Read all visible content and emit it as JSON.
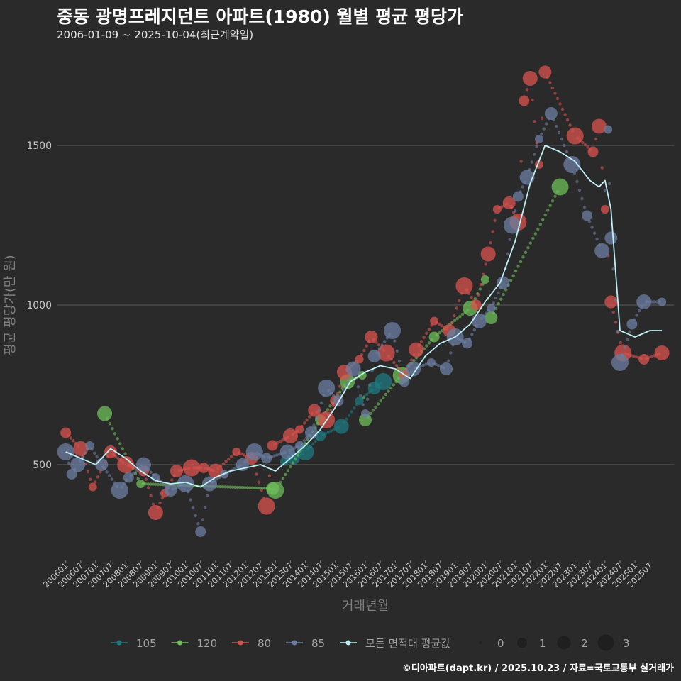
{
  "header": {
    "title": "중동 광명프레지던트 아파트(1980) 월별 평균 평당가",
    "subtitle": "2006-01-09 ~ 2025-10-04(최근계약일)"
  },
  "caption": "©디아파트(dapt.kr) / 2025.10.23 / 자료=국토교통부 실거래가",
  "colors": {
    "background": "#2b2a2b",
    "grid": "#5c5c5c",
    "s105": "#1f7a80",
    "s120": "#6fbf5a",
    "s80": "#d9534f",
    "s85": "#6c7fa3",
    "avg": "#bff0f5"
  },
  "chart_data": {
    "type": "scatter",
    "xlabel": "거래년월",
    "ylabel": "평균 평당가(만 원)",
    "ylim": [
      200,
      1800
    ],
    "yticks": [
      500,
      1000,
      1500
    ],
    "x_tick_labels": [
      "200601",
      "200607",
      "200701",
      "200707",
      "200801",
      "200807",
      "200901",
      "200907",
      "201001",
      "201007",
      "201101",
      "201107",
      "201201",
      "201207",
      "201301",
      "201307",
      "201401",
      "201407",
      "201501",
      "201507",
      "201601",
      "201607",
      "201701",
      "201707",
      "201801",
      "201807",
      "201901",
      "201907",
      "202001",
      "202007",
      "202101",
      "202107",
      "202201",
      "202207",
      "202301",
      "202307",
      "202401",
      "202407",
      "202501",
      "202507"
    ],
    "legend": {
      "series_labels": [
        "105",
        "120",
        "80",
        "85",
        "모든 면적대 평균값"
      ],
      "size_labels": [
        "0",
        "1",
        "2",
        "3"
      ]
    },
    "series": [
      {
        "name": "105",
        "points": [
          [
            2013.3,
            510
          ],
          [
            2013.6,
            520
          ],
          [
            2014.0,
            540
          ],
          [
            2014.5,
            590
          ],
          [
            2015.2,
            620
          ],
          [
            2015.8,
            700
          ],
          [
            2016.3,
            740
          ],
          [
            2016.6,
            760
          ]
        ]
      },
      {
        "name": "120",
        "points": [
          [
            2007.3,
            660
          ],
          [
            2008.5,
            440
          ],
          [
            2012.9,
            425
          ],
          [
            2013.0,
            420
          ],
          [
            2014.5,
            640
          ],
          [
            2015.4,
            760
          ],
          [
            2015.9,
            780
          ],
          [
            2016.0,
            640
          ],
          [
            2017.2,
            780
          ],
          [
            2018.3,
            900
          ],
          [
            2019.5,
            990
          ],
          [
            2020.0,
            1080
          ],
          [
            2020.2,
            960
          ],
          [
            2022.5,
            1370
          ]
        ]
      },
      {
        "name": "80",
        "points": [
          [
            2006.0,
            600
          ],
          [
            2006.5,
            550
          ],
          [
            2006.9,
            430
          ],
          [
            2007.5,
            540
          ],
          [
            2008.0,
            500
          ],
          [
            2008.6,
            480
          ],
          [
            2009.0,
            350
          ],
          [
            2009.3,
            410
          ],
          [
            2009.7,
            480
          ],
          [
            2010.2,
            490
          ],
          [
            2010.6,
            490
          ],
          [
            2011.0,
            480
          ],
          [
            2011.7,
            540
          ],
          [
            2012.2,
            520
          ],
          [
            2012.7,
            370
          ],
          [
            2012.9,
            560
          ],
          [
            2013.5,
            590
          ],
          [
            2013.8,
            610
          ],
          [
            2014.3,
            670
          ],
          [
            2014.7,
            640
          ],
          [
            2015.0,
            700
          ],
          [
            2015.3,
            790
          ],
          [
            2015.8,
            830
          ],
          [
            2016.2,
            900
          ],
          [
            2016.7,
            850
          ],
          [
            2017.3,
            780
          ],
          [
            2017.7,
            860
          ],
          [
            2018.3,
            950
          ],
          [
            2018.8,
            920
          ],
          [
            2019.3,
            1060
          ],
          [
            2019.7,
            1000
          ],
          [
            2020.1,
            1160
          ],
          [
            2020.4,
            1300
          ],
          [
            2020.8,
            1320
          ],
          [
            2021.1,
            1260
          ],
          [
            2021.3,
            1640
          ],
          [
            2021.5,
            1710
          ],
          [
            2021.8,
            1440
          ],
          [
            2022.0,
            1730
          ],
          [
            2023.0,
            1530
          ],
          [
            2023.6,
            1480
          ],
          [
            2023.8,
            1560
          ],
          [
            2024.0,
            1300
          ],
          [
            2024.2,
            1010
          ],
          [
            2024.6,
            850
          ],
          [
            2025.3,
            830
          ],
          [
            2025.9,
            850
          ]
        ]
      },
      {
        "name": "85",
        "points": [
          [
            2006.0,
            540
          ],
          [
            2006.2,
            470
          ],
          [
            2006.4,
            500
          ],
          [
            2006.8,
            560
          ],
          [
            2007.2,
            500
          ],
          [
            2007.8,
            420
          ],
          [
            2008.1,
            460
          ],
          [
            2008.6,
            500
          ],
          [
            2009.0,
            460
          ],
          [
            2009.5,
            420
          ],
          [
            2010.0,
            440
          ],
          [
            2010.5,
            290
          ],
          [
            2010.8,
            440
          ],
          [
            2011.3,
            470
          ],
          [
            2011.9,
            500
          ],
          [
            2012.3,
            540
          ],
          [
            2012.7,
            520
          ],
          [
            2013.4,
            540
          ],
          [
            2013.8,
            560
          ],
          [
            2014.2,
            600
          ],
          [
            2014.7,
            740
          ],
          [
            2015.1,
            700
          ],
          [
            2015.6,
            800
          ],
          [
            2016.0,
            660
          ],
          [
            2016.3,
            840
          ],
          [
            2016.9,
            920
          ],
          [
            2017.3,
            760
          ],
          [
            2017.6,
            800
          ],
          [
            2018.2,
            820
          ],
          [
            2018.7,
            800
          ],
          [
            2019.0,
            900
          ],
          [
            2019.4,
            880
          ],
          [
            2019.8,
            950
          ],
          [
            2020.2,
            990
          ],
          [
            2020.6,
            1070
          ],
          [
            2020.9,
            1250
          ],
          [
            2021.1,
            1340
          ],
          [
            2021.4,
            1400
          ],
          [
            2021.8,
            1520
          ],
          [
            2022.2,
            1600
          ],
          [
            2022.9,
            1440
          ],
          [
            2023.4,
            1280
          ],
          [
            2023.9,
            1170
          ],
          [
            2024.1,
            1550
          ],
          [
            2024.2,
            1210
          ],
          [
            2024.5,
            820
          ],
          [
            2024.9,
            940
          ],
          [
            2025.3,
            1010
          ],
          [
            2025.9,
            1010
          ]
        ]
      },
      {
        "name": "모든 면적대 평균값",
        "points": [
          [
            2006.0,
            540
          ],
          [
            2006.5,
            520
          ],
          [
            2007.0,
            500
          ],
          [
            2007.5,
            550
          ],
          [
            2008.0,
            520
          ],
          [
            2008.5,
            480
          ],
          [
            2009.0,
            450
          ],
          [
            2009.5,
            440
          ],
          [
            2010.0,
            445
          ],
          [
            2010.5,
            430
          ],
          [
            2011.0,
            460
          ],
          [
            2011.5,
            480
          ],
          [
            2012.0,
            490
          ],
          [
            2012.5,
            500
          ],
          [
            2013.0,
            480
          ],
          [
            2013.5,
            520
          ],
          [
            2014.0,
            560
          ],
          [
            2014.5,
            610
          ],
          [
            2015.0,
            680
          ],
          [
            2015.5,
            760
          ],
          [
            2016.0,
            790
          ],
          [
            2016.5,
            810
          ],
          [
            2017.0,
            800
          ],
          [
            2017.5,
            770
          ],
          [
            2018.0,
            840
          ],
          [
            2018.5,
            880
          ],
          [
            2019.0,
            900
          ],
          [
            2019.5,
            940
          ],
          [
            2020.0,
            1010
          ],
          [
            2020.5,
            1070
          ],
          [
            2021.0,
            1200
          ],
          [
            2021.5,
            1380
          ],
          [
            2022.0,
            1500
          ],
          [
            2022.5,
            1480
          ],
          [
            2023.0,
            1450
          ],
          [
            2023.5,
            1390
          ],
          [
            2023.8,
            1370
          ],
          [
            2024.0,
            1390
          ],
          [
            2024.2,
            1300
          ],
          [
            2024.5,
            920
          ],
          [
            2025.0,
            900
          ],
          [
            2025.5,
            920
          ],
          [
            2025.9,
            920
          ]
        ]
      }
    ]
  }
}
